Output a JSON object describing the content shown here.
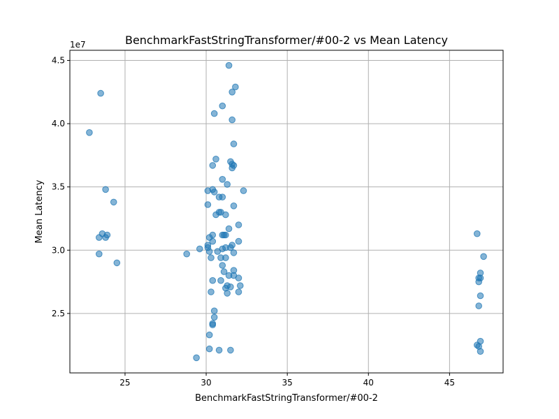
{
  "chart_data": {
    "type": "scatter",
    "title": "BenchmarkFastStringTransformer/#00-2 vs Mean Latency",
    "xlabel": "BenchmarkFastStringTransformer/#00-2",
    "ylabel": "Mean Latency",
    "y_offset_label": "1e7",
    "xlim": [
      21.6,
      48.3
    ],
    "ylim": [
      20.3,
      45.8
    ],
    "x_ticks": [
      25,
      30,
      35,
      40,
      45
    ],
    "y_ticks": [
      25,
      30,
      35,
      40,
      45
    ],
    "x_tick_labels": [
      "25",
      "30",
      "35",
      "40",
      "45"
    ],
    "y_tick_labels": [
      "2.5",
      "3.0",
      "3.5",
      "4.0",
      "4.5"
    ],
    "grid": true,
    "marker_color": "#1f77b4",
    "marker_alpha": 0.55,
    "series": [
      {
        "points": [
          [
            22.8,
            39.3
          ],
          [
            23.5,
            42.4
          ],
          [
            23.8,
            34.8
          ],
          [
            24.3,
            33.8
          ],
          [
            23.6,
            31.3
          ],
          [
            23.9,
            31.2
          ],
          [
            23.4,
            31.0
          ],
          [
            23.8,
            31.0
          ],
          [
            23.4,
            29.7
          ],
          [
            24.5,
            29.0
          ],
          [
            28.8,
            29.7
          ],
          [
            29.4,
            21.5
          ],
          [
            29.6,
            30.1
          ],
          [
            30.1,
            34.7
          ],
          [
            30.1,
            33.6
          ],
          [
            30.1,
            30.4
          ],
          [
            30.1,
            30.2
          ],
          [
            30.2,
            29.9
          ],
          [
            30.2,
            31.0
          ],
          [
            30.2,
            23.3
          ],
          [
            30.2,
            22.2
          ],
          [
            30.3,
            29.4
          ],
          [
            30.3,
            26.7
          ],
          [
            30.4,
            31.2
          ],
          [
            30.4,
            30.7
          ],
          [
            30.4,
            36.7
          ],
          [
            30.4,
            34.8
          ],
          [
            30.4,
            27.6
          ],
          [
            30.4,
            24.1
          ],
          [
            30.4,
            24.2
          ],
          [
            30.5,
            40.8
          ],
          [
            30.5,
            34.6
          ],
          [
            30.5,
            25.2
          ],
          [
            30.5,
            24.7
          ],
          [
            30.6,
            37.2
          ],
          [
            30.6,
            32.8
          ],
          [
            30.7,
            29.9
          ],
          [
            30.8,
            34.2
          ],
          [
            30.8,
            33.0
          ],
          [
            30.8,
            22.1
          ],
          [
            30.9,
            33.0
          ],
          [
            30.9,
            29.4
          ],
          [
            30.9,
            27.6
          ],
          [
            31.0,
            41.4
          ],
          [
            31.0,
            35.6
          ],
          [
            31.0,
            34.2
          ],
          [
            31.0,
            31.2
          ],
          [
            31.0,
            30.1
          ],
          [
            31.0,
            28.8
          ],
          [
            31.1,
            31.2
          ],
          [
            31.1,
            28.3
          ],
          [
            31.2,
            32.8
          ],
          [
            31.2,
            31.2
          ],
          [
            31.2,
            30.2
          ],
          [
            31.2,
            29.4
          ],
          [
            31.2,
            27.0
          ],
          [
            31.3,
            35.2
          ],
          [
            31.3,
            27.2
          ],
          [
            31.3,
            26.6
          ],
          [
            31.4,
            44.6
          ],
          [
            31.4,
            31.7
          ],
          [
            31.4,
            28.0
          ],
          [
            31.5,
            37.0
          ],
          [
            31.5,
            30.2
          ],
          [
            31.5,
            27.1
          ],
          [
            31.5,
            22.1
          ],
          [
            31.6,
            42.5
          ],
          [
            31.6,
            40.3
          ],
          [
            31.6,
            36.8
          ],
          [
            31.6,
            36.5
          ],
          [
            31.6,
            30.4
          ],
          [
            31.7,
            38.4
          ],
          [
            31.7,
            36.7
          ],
          [
            31.7,
            33.5
          ],
          [
            31.7,
            29.8
          ],
          [
            31.7,
            28.4
          ],
          [
            31.7,
            28.0
          ],
          [
            31.8,
            42.9
          ],
          [
            32.0,
            32.0
          ],
          [
            32.0,
            30.7
          ],
          [
            32.0,
            27.8
          ],
          [
            32.0,
            26.7
          ],
          [
            32.1,
            27.2
          ],
          [
            32.3,
            34.7
          ],
          [
            46.7,
            31.3
          ],
          [
            46.7,
            22.5
          ],
          [
            46.8,
            27.5
          ],
          [
            46.8,
            27.8
          ],
          [
            46.8,
            25.6
          ],
          [
            46.8,
            22.4
          ],
          [
            46.9,
            27.8
          ],
          [
            46.9,
            26.4
          ],
          [
            46.9,
            28.2
          ],
          [
            46.9,
            22.8
          ],
          [
            46.9,
            22.0
          ],
          [
            47.1,
            29.5
          ]
        ]
      }
    ]
  }
}
